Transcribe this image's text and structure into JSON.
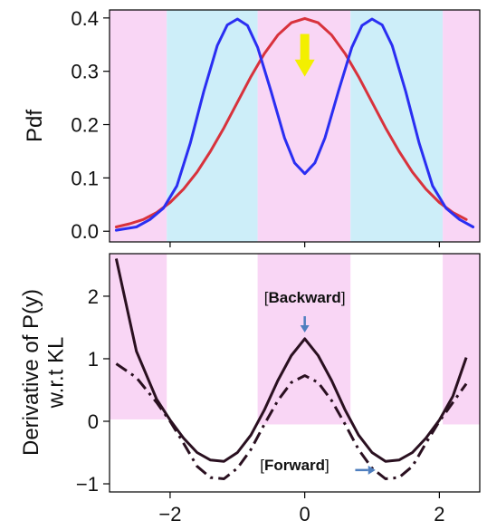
{
  "chart_data": [
    {
      "type": "line",
      "ylabel": "Pdf",
      "xlim": [
        -2.9,
        2.6
      ],
      "ylim": [
        -0.02,
        0.415
      ],
      "yticks": [
        0.0,
        0.1,
        0.2,
        0.3,
        0.4
      ],
      "ytick_labels": [
        "0.0",
        "0.1",
        "0.2",
        "0.3",
        "0.4"
      ],
      "xticks": [
        -2,
        0,
        2
      ],
      "grid": false,
      "bands": [
        {
          "x0": -2.9,
          "x1": -2.05,
          "color": "#f9d6f5"
        },
        {
          "x0": -2.05,
          "x1": -0.7,
          "color": "#cdeef9"
        },
        {
          "x0": -0.7,
          "x1": 0.68,
          "color": "#f9d6f5"
        },
        {
          "x0": 0.68,
          "x1": 2.05,
          "color": "#cdeef9"
        },
        {
          "x0": 2.05,
          "x1": 2.6,
          "color": "#f9d6f5"
        }
      ],
      "series": [
        {
          "color": "#d8323c",
          "x": [
            -2.8,
            -2.6,
            -2.4,
            -2.2,
            -2.0,
            -1.8,
            -1.6,
            -1.4,
            -1.2,
            -1.0,
            -0.8,
            -0.6,
            -0.4,
            -0.2,
            0.0,
            0.2,
            0.4,
            0.6,
            0.8,
            1.0,
            1.2,
            1.4,
            1.6,
            1.8,
            2.0,
            2.2,
            2.4
          ],
          "y": [
            0.008,
            0.014,
            0.022,
            0.035,
            0.054,
            0.079,
            0.111,
            0.15,
            0.194,
            0.242,
            0.29,
            0.333,
            0.368,
            0.391,
            0.399,
            0.391,
            0.368,
            0.333,
            0.29,
            0.242,
            0.194,
            0.15,
            0.111,
            0.079,
            0.054,
            0.035,
            0.022
          ]
        },
        {
          "color": "#2a2ef2",
          "x": [
            -2.8,
            -2.5,
            -2.3,
            -2.1,
            -1.9,
            -1.7,
            -1.5,
            -1.3,
            -1.15,
            -1.0,
            -0.85,
            -0.7,
            -0.5,
            -0.3,
            -0.15,
            0.0,
            0.15,
            0.3,
            0.5,
            0.7,
            0.85,
            1.0,
            1.15,
            1.3,
            1.5,
            1.7,
            1.9,
            2.1,
            2.3,
            2.5
          ],
          "y": [
            0.002,
            0.008,
            0.022,
            0.043,
            0.085,
            0.165,
            0.262,
            0.348,
            0.387,
            0.398,
            0.386,
            0.345,
            0.262,
            0.175,
            0.128,
            0.108,
            0.128,
            0.175,
            0.262,
            0.345,
            0.386,
            0.398,
            0.387,
            0.348,
            0.262,
            0.165,
            0.085,
            0.043,
            0.022,
            0.008
          ]
        }
      ],
      "marker": {
        "type": "down-arrow",
        "x": 0.0,
        "y_top": 0.37,
        "y_bottom": 0.29,
        "color": "#f3ef00"
      }
    },
    {
      "type": "line",
      "ylabel": "Derivative of P(y)\nw.r.t KL",
      "xlim": [
        -2.9,
        2.6
      ],
      "ylim": [
        -1.13,
        2.68
      ],
      "yticks": [
        -1,
        0,
        1,
        2
      ],
      "ytick_labels": [
        "−1",
        "0",
        "1",
        "2"
      ],
      "xticks": [
        -2,
        0,
        2
      ],
      "xtick_labels": [
        "−2",
        "0",
        "2"
      ],
      "grid": false,
      "bands": [
        {
          "x0": -2.9,
          "x1": -2.05,
          "y0": 0.03,
          "y1": 2.68,
          "color": "#f9d6f5"
        },
        {
          "x0": -0.7,
          "x1": 0.68,
          "y0": -0.05,
          "y1": 2.68,
          "color": "#f9d6f5"
        },
        {
          "x0": 2.05,
          "x1": 2.6,
          "y0": -0.05,
          "y1": 2.68,
          "color": "#f9d6f5"
        }
      ],
      "series": [
        {
          "style": "solid",
          "color": "#2a1020",
          "x": [
            -2.8,
            -2.5,
            -2.2,
            -2.0,
            -1.8,
            -1.6,
            -1.4,
            -1.2,
            -1.0,
            -0.8,
            -0.6,
            -0.4,
            -0.2,
            0.0,
            0.2,
            0.4,
            0.6,
            0.8,
            1.0,
            1.2,
            1.4,
            1.6,
            1.8,
            2.0,
            2.2,
            2.4
          ],
          "y": [
            2.6,
            1.12,
            0.35,
            0.02,
            -0.27,
            -0.5,
            -0.62,
            -0.64,
            -0.5,
            -0.22,
            0.18,
            0.65,
            1.05,
            1.32,
            1.05,
            0.65,
            0.18,
            -0.22,
            -0.5,
            -0.64,
            -0.62,
            -0.5,
            -0.27,
            0.02,
            0.4,
            1.02
          ]
        },
        {
          "style": "dashdot",
          "color": "#2a1020",
          "x": [
            -2.8,
            -2.5,
            -2.2,
            -2.0,
            -1.8,
            -1.6,
            -1.4,
            -1.2,
            -1.0,
            -0.8,
            -0.6,
            -0.4,
            -0.2,
            0.0,
            0.2,
            0.4,
            0.6,
            0.8,
            1.0,
            1.2,
            1.4,
            1.6,
            1.8,
            2.0,
            2.2,
            2.4
          ],
          "y": [
            0.92,
            0.7,
            0.3,
            0.0,
            -0.35,
            -0.72,
            -0.9,
            -0.92,
            -0.75,
            -0.45,
            -0.05,
            0.33,
            0.62,
            0.73,
            0.62,
            0.33,
            -0.05,
            -0.45,
            -0.75,
            -0.92,
            -0.9,
            -0.72,
            -0.35,
            0.0,
            0.3,
            0.6
          ]
        }
      ],
      "annotations": [
        {
          "text_pre": "[",
          "text": "Backward",
          "text_post": "]",
          "x": 0.0,
          "y": 1.9,
          "arrow_to": {
            "x": 0.0,
            "y": 1.42
          },
          "arrow_from": {
            "x": 0.0,
            "y": 1.68
          }
        },
        {
          "text_pre": "[",
          "text": "Forward",
          "text_post": "]",
          "x": -0.15,
          "y": -0.78,
          "arrow_from": {
            "x": 0.75,
            "y": -0.78
          },
          "arrow_to": {
            "x": 1.05,
            "y": -0.78
          }
        }
      ]
    }
  ]
}
